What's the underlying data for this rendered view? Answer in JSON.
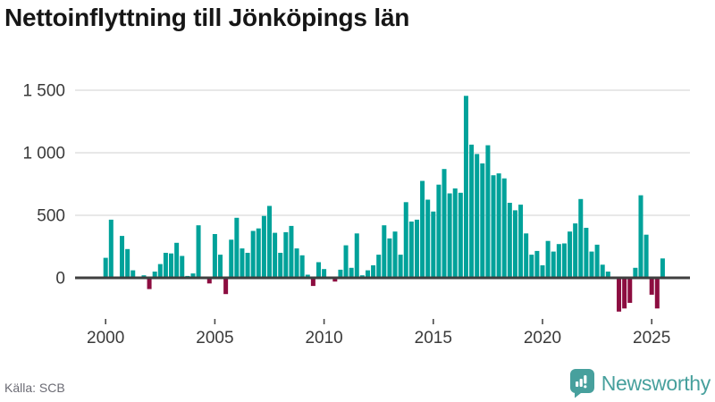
{
  "chart_data": {
    "type": "bar",
    "title": "Nettoinflyttning till Jönköpings län",
    "xlabel": "",
    "ylabel": "",
    "start_year": 2000,
    "start_quarter": 1,
    "periods_per_year": 4,
    "values": [
      160,
      465,
      10,
      335,
      230,
      60,
      5,
      20,
      -90,
      50,
      110,
      200,
      195,
      280,
      175,
      15,
      35,
      420,
      10,
      -45,
      350,
      185,
      -130,
      305,
      480,
      235,
      200,
      375,
      395,
      495,
      575,
      360,
      200,
      365,
      415,
      235,
      180,
      25,
      -65,
      125,
      70,
      5,
      -30,
      65,
      260,
      80,
      355,
      20,
      60,
      100,
      185,
      420,
      315,
      370,
      185,
      605,
      450,
      465,
      775,
      625,
      530,
      745,
      870,
      675,
      715,
      680,
      1455,
      1065,
      990,
      915,
      1060,
      820,
      835,
      795,
      600,
      540,
      585,
      355,
      185,
      215,
      100,
      295,
      210,
      270,
      275,
      370,
      435,
      630,
      400,
      210,
      265,
      105,
      50,
      0,
      -270,
      -245,
      -200,
      80,
      660,
      345,
      -135,
      -245,
      155
    ],
    "y_ticks": [
      {
        "value": 0,
        "label": "0"
      },
      {
        "value": 500,
        "label": "500"
      },
      {
        "value": 1000,
        "label": "1 000"
      },
      {
        "value": 1500,
        "label": "1 500"
      }
    ],
    "x_ticks": [
      {
        "year": 2000,
        "label": "2000"
      },
      {
        "year": 2005,
        "label": "2005"
      },
      {
        "year": 2010,
        "label": "2010"
      },
      {
        "year": 2015,
        "label": "2015"
      },
      {
        "year": 2020,
        "label": "2020"
      },
      {
        "year": 2025,
        "label": "2025"
      }
    ],
    "ylim": [
      -300,
      1500
    ],
    "grid": "horizontal",
    "legend": "none"
  },
  "colors": {
    "positive_bar": "#00a29a",
    "negative_bar": "#8c0d40",
    "axis": "#3f3f3f",
    "grid": "#e8e8e8",
    "tick_label": "#3a3a3a",
    "title_text": "#161616",
    "source_text": "#6b6b74",
    "brand": "#47a09d"
  },
  "footer": {
    "source": "Källa: SCB",
    "brand": "Newsworthy"
  }
}
